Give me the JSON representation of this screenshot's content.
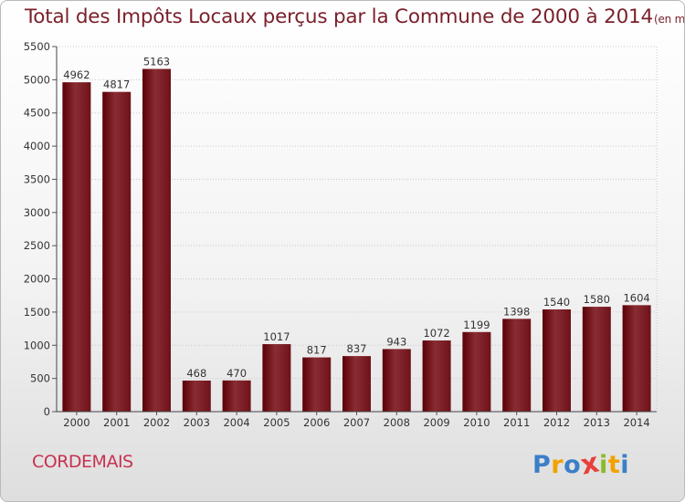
{
  "title": "Total des Impôts Locaux perçus par la Commune de 2000 à 2014",
  "title_unit": "(en milliers d'€)",
  "commune": "CORDEMAIS",
  "logo": {
    "letters": [
      "P",
      "r",
      "o",
      "x",
      "i",
      "t",
      "i"
    ],
    "colors": [
      "#3a7fc8",
      "#f2a100",
      "#3a7fc8",
      "#e8403a",
      "#8bbb2a",
      "#f2a100",
      "#3a7fc8"
    ]
  },
  "colors": {
    "bar_dark": "#5a0006",
    "bar_light": "#8a2c33",
    "title": "#7a1f2a",
    "commune": "#c83250"
  },
  "chart_data": {
    "type": "bar",
    "categories": [
      "2000",
      "2001",
      "2002",
      "2003",
      "2004",
      "2005",
      "2006",
      "2007",
      "2008",
      "2009",
      "2010",
      "2011",
      "2012",
      "2013",
      "2014"
    ],
    "values": [
      4962,
      4817,
      5163,
      468,
      470,
      1017,
      817,
      837,
      943,
      1072,
      1199,
      1398,
      1540,
      1580,
      1604
    ],
    "ylim": [
      0,
      5500
    ],
    "yticks": [
      0,
      500,
      1000,
      1500,
      2000,
      2500,
      3000,
      3500,
      4000,
      4500,
      5000,
      5500
    ],
    "grid": true,
    "xlabel": "",
    "ylabel": ""
  }
}
